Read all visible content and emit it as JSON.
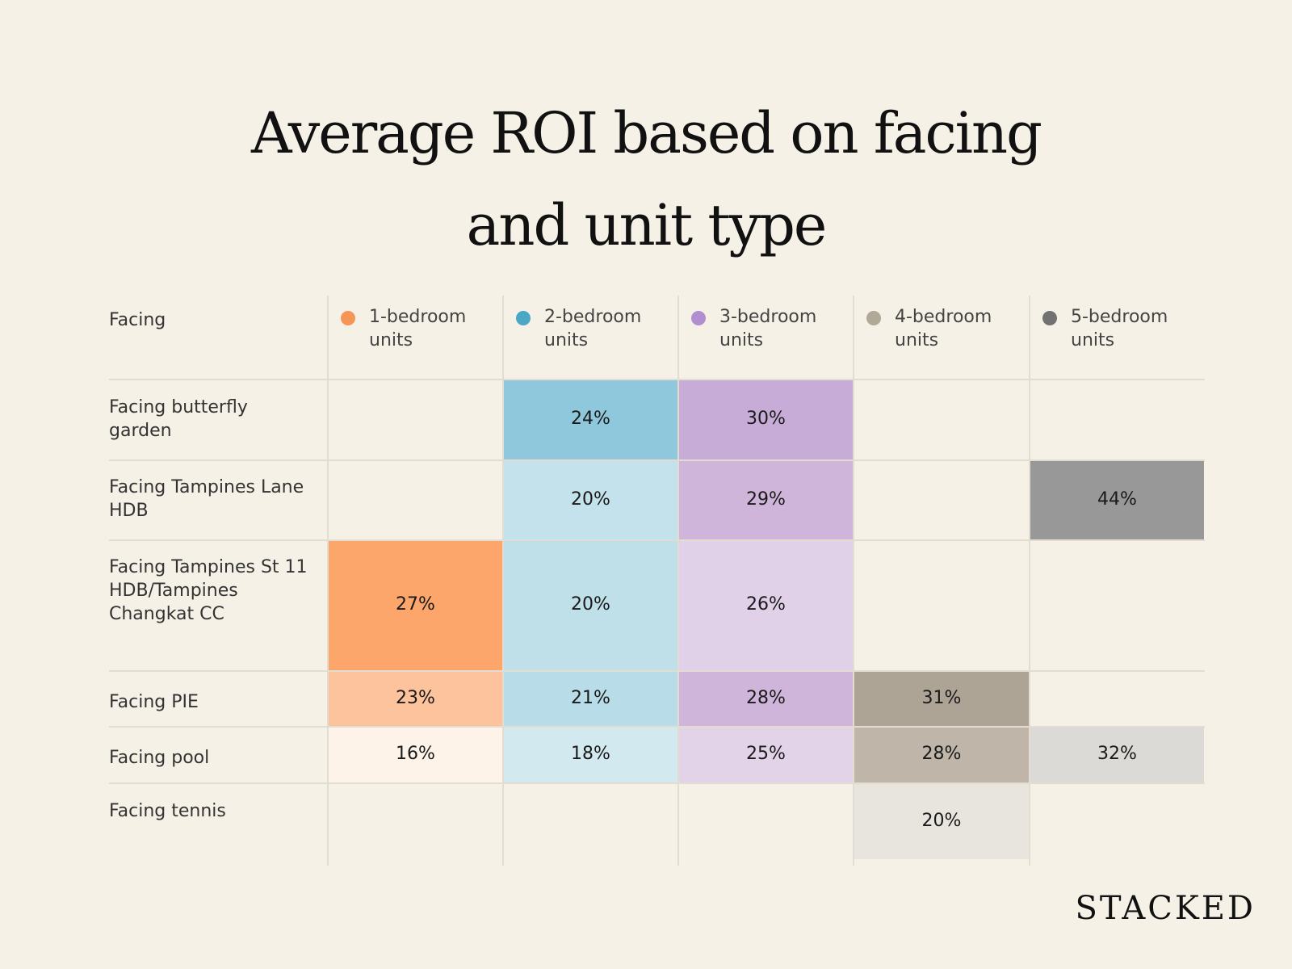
{
  "title": {
    "line1": "Average ROI based on facing",
    "line2": "and unit type"
  },
  "chart_data": {
    "type": "heatmap",
    "title": "Average ROI based on facing and unit type",
    "row_header": "Facing",
    "columns": [
      {
        "label": "1-bedroom units",
        "dot": "#f59556"
      },
      {
        "label": "2-bedroom units",
        "dot": "#4aa8c6"
      },
      {
        "label": "3-bedroom units",
        "dot": "#b08ecf"
      },
      {
        "label": "4-bedroom units",
        "dot": "#b2a898"
      },
      {
        "label": "5-bedroom units",
        "dot": "#727272"
      }
    ],
    "rows": [
      {
        "label": "Facing butterfly garden",
        "values": [
          null,
          24,
          30,
          null,
          null
        ],
        "display": [
          "",
          "24%",
          "30%",
          "",
          ""
        ]
      },
      {
        "label": "Facing Tampines Lane HDB",
        "values": [
          null,
          20,
          29,
          null,
          44
        ],
        "display": [
          "",
          "20%",
          "29%",
          "",
          "44%"
        ]
      },
      {
        "label": "Facing Tampines St 11 HDB/Tampines Changkat CC",
        "values": [
          27,
          20,
          26,
          null,
          null
        ],
        "display": [
          "27%",
          "20%",
          "26%",
          "",
          ""
        ]
      },
      {
        "label": "Facing PIE",
        "values": [
          23,
          21,
          28,
          31,
          null
        ],
        "display": [
          "23%",
          "21%",
          "28%",
          "31%",
          ""
        ]
      },
      {
        "label": "Facing pool",
        "values": [
          16,
          18,
          25,
          28,
          32
        ],
        "display": [
          "16%",
          "18%",
          "25%",
          "28%",
          "32%"
        ]
      },
      {
        "label": "Facing tennis",
        "values": [
          null,
          null,
          null,
          20,
          null
        ],
        "display": [
          "",
          "",
          "",
          "20%",
          ""
        ]
      }
    ],
    "cell_colors": [
      [
        null,
        "#8fc8dc",
        "#c7acd7",
        null,
        null
      ],
      [
        null,
        "#c3e2eb",
        "#d0b5db",
        null,
        "#989898"
      ],
      [
        "#fca66c",
        "#bfdfe9",
        "#e0d0e8",
        null,
        null
      ],
      [
        "#fdc39d",
        "#b9dde8",
        "#d0b5db",
        "#aea495",
        null
      ],
      [
        "#fef3e9",
        "#d3e9f0",
        "#e2d3e9",
        "#bfb6a9",
        "#dbdad7"
      ],
      [
        null,
        null,
        null,
        "#e8e5df",
        null
      ]
    ]
  },
  "brand": "STACKED"
}
